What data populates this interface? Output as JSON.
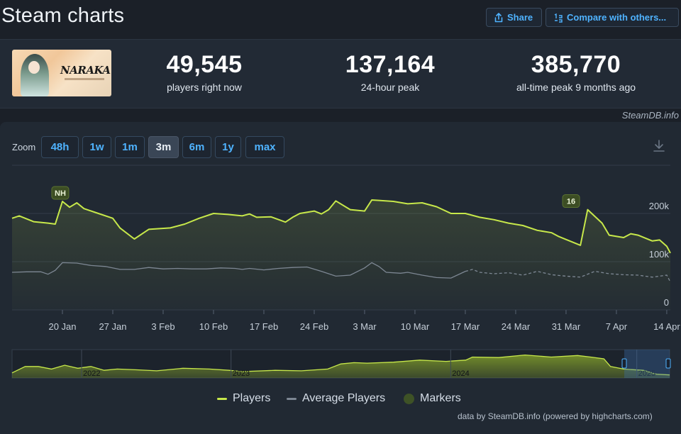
{
  "header": {
    "title": "Steam charts",
    "share_label": "Share",
    "compare_label": "Compare with others..."
  },
  "stats": {
    "game_logo_text": "NARAKA",
    "current": {
      "value": "49,545",
      "label": "players right now"
    },
    "peak24": {
      "value": "137,164",
      "label": "24-hour peak"
    },
    "alltime": {
      "value": "385,770",
      "label": "all-time peak 9 months ago"
    }
  },
  "credit": "SteamDB.info",
  "zoom": {
    "label": "Zoom",
    "options": [
      "48h",
      "1w",
      "1m",
      "3m",
      "6m",
      "1y",
      "max"
    ],
    "active": "3m"
  },
  "legend": {
    "players": "Players",
    "average": "Average Players",
    "markers": "Markers"
  },
  "powered": "data by SteamDB.info (powered by highcharts.com)",
  "colors": {
    "players": "#c7e84a",
    "average": "#8a929c",
    "markers": "#3b4a25",
    "accent": "#4fb3ff",
    "background": "#1b2028"
  },
  "chart_data": [
    {
      "type": "line",
      "title": "",
      "xlabel": "",
      "ylabel": "",
      "x_ticks": [
        "20 Jan",
        "27 Jan",
        "3 Feb",
        "10 Feb",
        "17 Feb",
        "24 Feb",
        "3 Mar",
        "10 Mar",
        "17 Mar",
        "24 Mar",
        "31 Mar",
        "7 Apr",
        "14 Apr"
      ],
      "y_ticks": [
        "0",
        "100k",
        "200k"
      ],
      "ylim": [
        0,
        300000
      ],
      "grid": true,
      "x_start_day": 13,
      "x_end_day": 104.5,
      "tick_days": [
        20,
        27,
        34,
        41,
        48,
        55,
        62,
        69,
        76,
        83,
        90,
        97,
        104
      ],
      "markers": [
        {
          "label": "NH",
          "day": 19.7,
          "value": 225000
        },
        {
          "label": "16",
          "day": 90.7,
          "value": 208000
        }
      ],
      "series": [
        {
          "name": "Players",
          "x": [
            13,
            14,
            16,
            18,
            19,
            20,
            21,
            22,
            23,
            25,
            27,
            28,
            30,
            32,
            35,
            37,
            39,
            41,
            43,
            45,
            46,
            47,
            49,
            51,
            52,
            53,
            55,
            56,
            57,
            58,
            60,
            62,
            63,
            64,
            66,
            68,
            70,
            72,
            74,
            76,
            78,
            80,
            82,
            84,
            86,
            88,
            89,
            90,
            91,
            92,
            93,
            95,
            96,
            98,
            99,
            100,
            102,
            103,
            104,
            104.5
          ],
          "y": [
            190000,
            195000,
            183000,
            180000,
            178000,
            225000,
            213000,
            222000,
            210000,
            200000,
            190000,
            170000,
            147000,
            167000,
            170000,
            178000,
            190000,
            200000,
            198000,
            195000,
            199000,
            192000,
            193000,
            182000,
            192000,
            200000,
            205000,
            199000,
            208000,
            226000,
            208000,
            205000,
            228000,
            227000,
            225000,
            220000,
            222000,
            214000,
            200000,
            200000,
            192000,
            187000,
            180000,
            175000,
            165000,
            160000,
            152000,
            146000,
            140000,
            134000,
            208000,
            180000,
            155000,
            150000,
            158000,
            155000,
            143000,
            145000,
            132000,
            118000
          ]
        },
        {
          "name": "Average Players",
          "x": [
            13,
            15,
            17,
            18,
            19,
            20,
            22,
            24,
            26,
            28,
            30,
            32,
            34,
            36,
            38,
            40,
            42,
            44,
            45,
            46,
            48,
            50,
            52,
            54,
            56,
            58,
            60,
            62,
            63,
            64,
            65,
            67,
            68,
            70,
            72,
            74,
            76,
            77,
            78,
            80,
            82,
            84,
            86,
            88,
            90,
            92,
            94,
            96,
            98,
            100,
            102,
            104,
            104.5
          ],
          "y": [
            78000,
            79000,
            79000,
            74000,
            82000,
            98000,
            97000,
            92000,
            90000,
            84000,
            84000,
            88000,
            85000,
            86000,
            85000,
            85000,
            87000,
            86000,
            84000,
            86000,
            83000,
            86000,
            88000,
            89000,
            80000,
            70000,
            72000,
            87000,
            98000,
            90000,
            78000,
            76000,
            78000,
            72000,
            67000,
            66000,
            80000,
            84000,
            78000,
            75000,
            77000,
            72000,
            80000,
            73000,
            70000,
            68000,
            80000,
            75000,
            73000,
            72000,
            68000,
            72000,
            58000
          ]
        }
      ]
    },
    {
      "type": "area",
      "title": "",
      "x_ticks": [
        "2022",
        "2023",
        "2024",
        "2025"
      ],
      "tick_positions": [
        0.0,
        0.333,
        0.667,
        0.95
      ],
      "series": [
        {
          "name": "Players",
          "x": [
            0,
            0.02,
            0.04,
            0.06,
            0.08,
            0.1,
            0.12,
            0.14,
            0.16,
            0.19,
            0.22,
            0.26,
            0.3,
            0.33,
            0.35,
            0.4,
            0.44,
            0.48,
            0.5,
            0.52,
            0.54,
            0.58,
            0.62,
            0.66,
            0.69,
            0.7,
            0.74,
            0.78,
            0.82,
            0.86,
            0.88,
            0.9,
            0.91,
            0.93,
            0.96,
            0.98,
            1.0
          ],
          "y": [
            0.2,
            0.45,
            0.45,
            0.35,
            0.5,
            0.38,
            0.45,
            0.3,
            0.35,
            0.32,
            0.28,
            0.38,
            0.35,
            0.3,
            0.25,
            0.3,
            0.28,
            0.35,
            0.55,
            0.6,
            0.58,
            0.62,
            0.7,
            0.65,
            0.7,
            0.82,
            0.8,
            0.9,
            0.82,
            0.88,
            0.82,
            0.75,
            0.45,
            0.35,
            0.3,
            0.15,
            0.12
          ]
        }
      ]
    }
  ]
}
